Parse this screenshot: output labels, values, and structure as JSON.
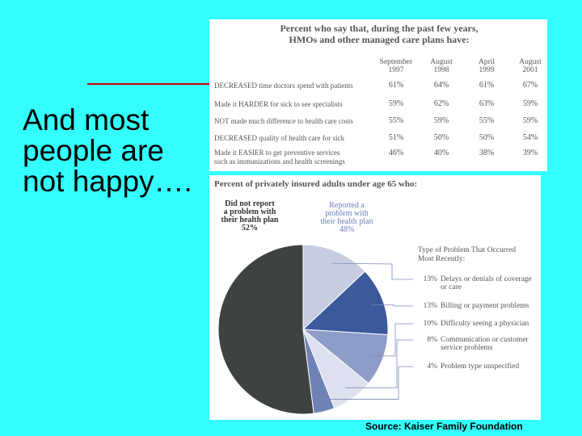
{
  "slide": {
    "heading": "And most people are not happy….",
    "source": "Source: Kaiser Family Foundation"
  },
  "table": {
    "title_line1": "Percent who say that, during the past few years,",
    "title_line2": "HMOs and other managed care plans have:",
    "columns": [
      {
        "line1": "September",
        "line2": "1997"
      },
      {
        "line1": "August",
        "line2": "1998"
      },
      {
        "line1": "April",
        "line2": "1999"
      },
      {
        "line1": "August",
        "line2": "2001"
      }
    ],
    "rows": [
      {
        "label": "DECREASED time doctors spend with patients",
        "label2": "",
        "values": [
          "61%",
          "64%",
          "61%",
          "67%"
        ]
      },
      {
        "label": "Made it HARDER for sick to see specialists",
        "label2": "",
        "values": [
          "59%",
          "62%",
          "63%",
          "59%"
        ]
      },
      {
        "label": "NOT made much difference to health care costs",
        "label2": "",
        "values": [
          "55%",
          "59%",
          "55%",
          "59%"
        ]
      },
      {
        "label": "DECREASED quality of health care for sick",
        "label2": "",
        "values": [
          "51%",
          "50%",
          "50%",
          "54%"
        ]
      },
      {
        "label": "Made it EASIER to get preventive services",
        "label2": "such as immunizations and health screenings",
        "values": [
          "46%",
          "40%",
          "38%",
          "39%"
        ]
      }
    ]
  },
  "pie": {
    "title": "Percent of privately insured adults under age 65 who:",
    "not_reported": {
      "line1": "Did not report",
      "line2": "a problem with",
      "line3": "their health plan",
      "pct": "52%"
    },
    "reported": {
      "line1": "Reported a",
      "line2": "problem with",
      "line3": "their health plan",
      "pct": "48%"
    },
    "legend_title_line1": "Type of Problem That Occurred",
    "legend_title_line2": "Most Recently:",
    "legend": [
      {
        "pct": "13%",
        "line1": "Delays or denials of coverage",
        "line2": "or care"
      },
      {
        "pct": "13%",
        "line1": "Billing or payment problems",
        "line2": ""
      },
      {
        "pct": "10%",
        "line1": "Difficulty seeing a physician",
        "line2": ""
      },
      {
        "pct": "8%",
        "line1": "Communication or customer",
        "line2": "service problems"
      },
      {
        "pct": "4%",
        "line1": "Problem type unspecified",
        "line2": ""
      }
    ]
  },
  "chart_data": {
    "type": "pie",
    "title": "Percent of privately insured adults under age 65 who:",
    "slices": [
      {
        "label": "Did not report a problem with their health plan",
        "value": 52,
        "color": "#3f433f"
      },
      {
        "label": "Delays or denials of coverage or care",
        "value": 13,
        "color": "#c8cce0"
      },
      {
        "label": "Billing or payment problems",
        "value": 13,
        "color": "#3a5a9c"
      },
      {
        "label": "Difficulty seeing a physician",
        "value": 10,
        "color": "#8e9cc8"
      },
      {
        "label": "Communication or customer service problems",
        "value": 8,
        "color": "#dde0ee"
      },
      {
        "label": "Problem type unspecified",
        "value": 4,
        "color": "#6f82b8"
      }
    ]
  }
}
